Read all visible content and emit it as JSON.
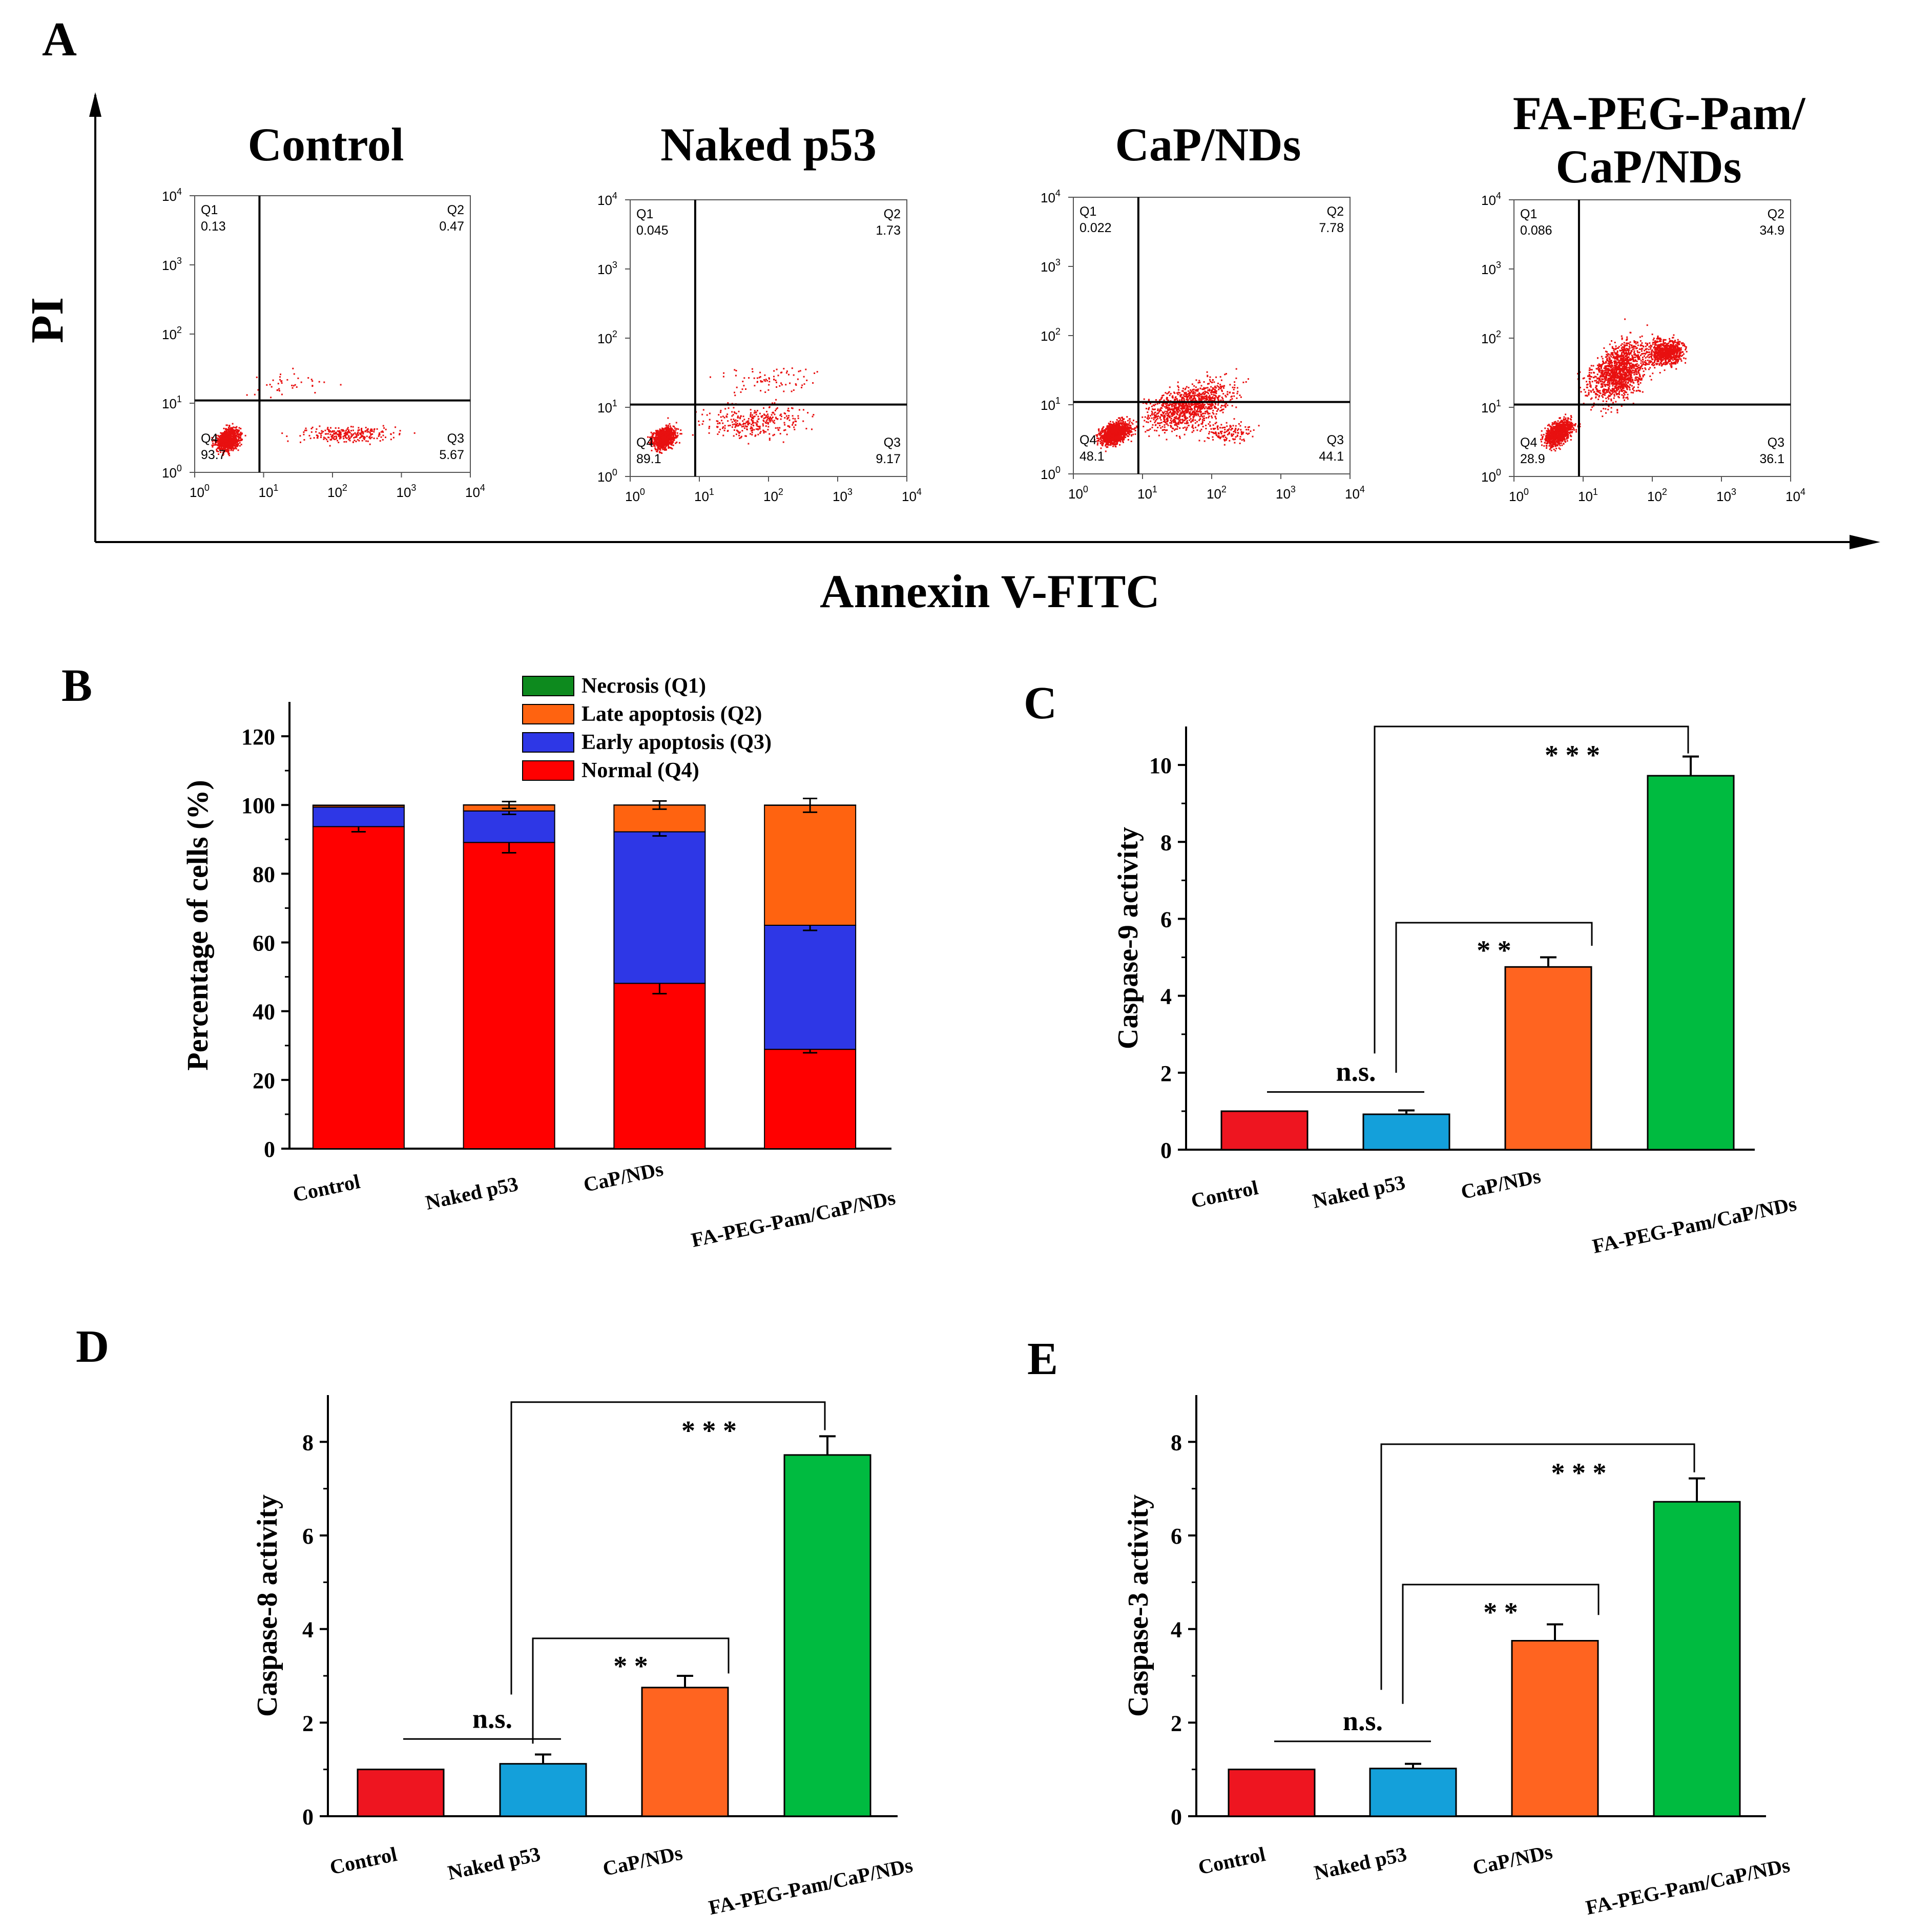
{
  "panel_labels": {
    "A": "A",
    "B": "B",
    "C": "C",
    "D": "D",
    "E": "E"
  },
  "panel_a": {
    "y_label": "PI",
    "x_label": "Annexin V-FITC",
    "titles": [
      "Control",
      "Naked p53",
      "CaP/NDs",
      "FA-PEG-Pam/",
      "CaP/NDs"
    ],
    "quadrant_names": [
      "Q1",
      "Q2",
      "Q3",
      "Q4"
    ],
    "tick_mantissa": "10",
    "tick_exponents": [
      "0",
      "1",
      "2",
      "3",
      "4"
    ],
    "plots": [
      {
        "q1": "0.13",
        "q2": "0.47",
        "q3": "5.67",
        "q4": "93.7"
      },
      {
        "q1": "0.045",
        "q2": "1.73",
        "q3": "9.17",
        "q4": "89.1"
      },
      {
        "q1": "0.022",
        "q2": "7.78",
        "q3": "44.1",
        "q4": "48.1"
      },
      {
        "q1": "0.086",
        "q2": "34.9",
        "q3": "36.1",
        "q4": "28.9"
      }
    ]
  },
  "chart_data": [
    {
      "id": "B",
      "type": "bar",
      "stacked": true,
      "ylabel": "Percentage of cells (%)",
      "ylim": [
        0,
        130
      ],
      "yticks": [
        "0",
        "20",
        "40",
        "60",
        "80",
        "100",
        "120"
      ],
      "categories": [
        "Control",
        "Naked p53",
        "CaP/NDs",
        "FA-PEG-Pam/CaP/NDs"
      ],
      "series": [
        {
          "name": "Normal (Q4)",
          "color": "#ff0000",
          "values": [
            93.7,
            89.1,
            48.1,
            28.9
          ],
          "errors": [
            1.5,
            3.0,
            3.0,
            1.0
          ]
        },
        {
          "name": "Early apoptosis (Q3)",
          "color": "#2e37e6",
          "values": [
            5.67,
            9.17,
            44.1,
            36.1
          ],
          "errors": [
            0,
            1.0,
            1.2,
            1.5
          ]
        },
        {
          "name": "Late apoptosis (Q2)",
          "color": "#ff6310",
          "values": [
            0.47,
            1.73,
            7.78,
            34.9
          ],
          "errors": [
            0,
            1.0,
            1.2,
            2.0
          ]
        },
        {
          "name": "Necrosis (Q1)",
          "color": "#0d8a1e",
          "values": [
            0.13,
            0.045,
            0.022,
            0.086
          ],
          "errors": [
            0,
            0,
            0,
            0
          ]
        }
      ],
      "legend": [
        "Necrosis (Q1)",
        "Late apoptosis (Q2)",
        "Early apoptosis (Q3)",
        "Normal (Q4)"
      ]
    },
    {
      "id": "C",
      "type": "bar",
      "ylabel": "Caspase-9 activity",
      "ylim": [
        0,
        11
      ],
      "yticks": [
        "0",
        "2",
        "4",
        "6",
        "8",
        "10"
      ],
      "categories": [
        "Control",
        "Naked p53",
        "CaP/NDs",
        "FA-PEG-Pam/CaP/NDs"
      ],
      "values": [
        1.0,
        0.92,
        4.75,
        9.72
      ],
      "errors": [
        0,
        0.1,
        0.25,
        0.5
      ],
      "colors": [
        "#ee1520",
        "#14a0da",
        "#ff6420",
        "#00bb40"
      ],
      "annotations": [
        "n.s.",
        "* *",
        "* * *"
      ]
    },
    {
      "id": "D",
      "type": "bar",
      "ylabel": "Caspase-8 activity",
      "ylim": [
        0,
        9
      ],
      "yticks": [
        "0",
        "2",
        "4",
        "6",
        "8"
      ],
      "categories": [
        "Control",
        "Naked p53",
        "CaP/NDs",
        "FA-PEG-Pam/CaP/NDs"
      ],
      "values": [
        1.0,
        1.12,
        2.75,
        7.72
      ],
      "errors": [
        0,
        0.2,
        0.25,
        0.4
      ],
      "colors": [
        "#ee1520",
        "#14a0da",
        "#ff6420",
        "#00bb40"
      ],
      "annotations": [
        "n.s.",
        "* *",
        "* * *"
      ]
    },
    {
      "id": "E",
      "type": "bar",
      "ylabel": "Caspase-3 activity",
      "ylim": [
        0,
        9
      ],
      "yticks": [
        "0",
        "2",
        "4",
        "6",
        "8"
      ],
      "categories": [
        "Control",
        "Naked p53",
        "CaP/NDs",
        "FA-PEG-Pam/CaP/NDs"
      ],
      "values": [
        1.0,
        1.02,
        3.75,
        6.72
      ],
      "errors": [
        0,
        0.1,
        0.35,
        0.5
      ],
      "colors": [
        "#ee1520",
        "#14a0da",
        "#ff6420",
        "#00bb40"
      ],
      "annotations": [
        "n.s.",
        "* *",
        "* * *"
      ]
    }
  ]
}
